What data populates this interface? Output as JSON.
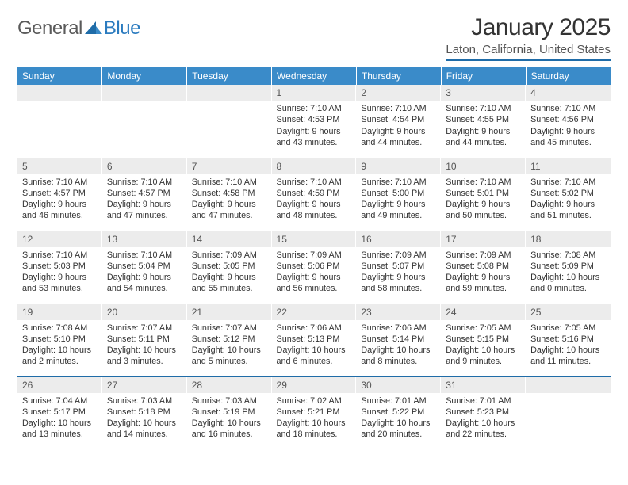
{
  "brand": {
    "text1": "General",
    "text2": "Blue"
  },
  "title": "January 2025",
  "location": "Laton, California, United States",
  "colors": {
    "header_bg": "#3a8bc9",
    "rule": "#1f6ca8",
    "daynum_bg": "#ececec",
    "brand_gray": "#5a5a5a",
    "brand_blue": "#2b7bbf"
  },
  "day_headers": [
    "Sunday",
    "Monday",
    "Tuesday",
    "Wednesday",
    "Thursday",
    "Friday",
    "Saturday"
  ],
  "weeks": [
    [
      {
        "n": "",
        "sr": "",
        "ss": "",
        "dl": ""
      },
      {
        "n": "",
        "sr": "",
        "ss": "",
        "dl": ""
      },
      {
        "n": "",
        "sr": "",
        "ss": "",
        "dl": ""
      },
      {
        "n": "1",
        "sr": "7:10 AM",
        "ss": "4:53 PM",
        "dl": "9 hours and 43 minutes."
      },
      {
        "n": "2",
        "sr": "7:10 AM",
        "ss": "4:54 PM",
        "dl": "9 hours and 44 minutes."
      },
      {
        "n": "3",
        "sr": "7:10 AM",
        "ss": "4:55 PM",
        "dl": "9 hours and 44 minutes."
      },
      {
        "n": "4",
        "sr": "7:10 AM",
        "ss": "4:56 PM",
        "dl": "9 hours and 45 minutes."
      }
    ],
    [
      {
        "n": "5",
        "sr": "7:10 AM",
        "ss": "4:57 PM",
        "dl": "9 hours and 46 minutes."
      },
      {
        "n": "6",
        "sr": "7:10 AM",
        "ss": "4:57 PM",
        "dl": "9 hours and 47 minutes."
      },
      {
        "n": "7",
        "sr": "7:10 AM",
        "ss": "4:58 PM",
        "dl": "9 hours and 47 minutes."
      },
      {
        "n": "8",
        "sr": "7:10 AM",
        "ss": "4:59 PM",
        "dl": "9 hours and 48 minutes."
      },
      {
        "n": "9",
        "sr": "7:10 AM",
        "ss": "5:00 PM",
        "dl": "9 hours and 49 minutes."
      },
      {
        "n": "10",
        "sr": "7:10 AM",
        "ss": "5:01 PM",
        "dl": "9 hours and 50 minutes."
      },
      {
        "n": "11",
        "sr": "7:10 AM",
        "ss": "5:02 PM",
        "dl": "9 hours and 51 minutes."
      }
    ],
    [
      {
        "n": "12",
        "sr": "7:10 AM",
        "ss": "5:03 PM",
        "dl": "9 hours and 53 minutes."
      },
      {
        "n": "13",
        "sr": "7:10 AM",
        "ss": "5:04 PM",
        "dl": "9 hours and 54 minutes."
      },
      {
        "n": "14",
        "sr": "7:09 AM",
        "ss": "5:05 PM",
        "dl": "9 hours and 55 minutes."
      },
      {
        "n": "15",
        "sr": "7:09 AM",
        "ss": "5:06 PM",
        "dl": "9 hours and 56 minutes."
      },
      {
        "n": "16",
        "sr": "7:09 AM",
        "ss": "5:07 PM",
        "dl": "9 hours and 58 minutes."
      },
      {
        "n": "17",
        "sr": "7:09 AM",
        "ss": "5:08 PM",
        "dl": "9 hours and 59 minutes."
      },
      {
        "n": "18",
        "sr": "7:08 AM",
        "ss": "5:09 PM",
        "dl": "10 hours and 0 minutes."
      }
    ],
    [
      {
        "n": "19",
        "sr": "7:08 AM",
        "ss": "5:10 PM",
        "dl": "10 hours and 2 minutes."
      },
      {
        "n": "20",
        "sr": "7:07 AM",
        "ss": "5:11 PM",
        "dl": "10 hours and 3 minutes."
      },
      {
        "n": "21",
        "sr": "7:07 AM",
        "ss": "5:12 PM",
        "dl": "10 hours and 5 minutes."
      },
      {
        "n": "22",
        "sr": "7:06 AM",
        "ss": "5:13 PM",
        "dl": "10 hours and 6 minutes."
      },
      {
        "n": "23",
        "sr": "7:06 AM",
        "ss": "5:14 PM",
        "dl": "10 hours and 8 minutes."
      },
      {
        "n": "24",
        "sr": "7:05 AM",
        "ss": "5:15 PM",
        "dl": "10 hours and 9 minutes."
      },
      {
        "n": "25",
        "sr": "7:05 AM",
        "ss": "5:16 PM",
        "dl": "10 hours and 11 minutes."
      }
    ],
    [
      {
        "n": "26",
        "sr": "7:04 AM",
        "ss": "5:17 PM",
        "dl": "10 hours and 13 minutes."
      },
      {
        "n": "27",
        "sr": "7:03 AM",
        "ss": "5:18 PM",
        "dl": "10 hours and 14 minutes."
      },
      {
        "n": "28",
        "sr": "7:03 AM",
        "ss": "5:19 PM",
        "dl": "10 hours and 16 minutes."
      },
      {
        "n": "29",
        "sr": "7:02 AM",
        "ss": "5:21 PM",
        "dl": "10 hours and 18 minutes."
      },
      {
        "n": "30",
        "sr": "7:01 AM",
        "ss": "5:22 PM",
        "dl": "10 hours and 20 minutes."
      },
      {
        "n": "31",
        "sr": "7:01 AM",
        "ss": "5:23 PM",
        "dl": "10 hours and 22 minutes."
      },
      {
        "n": "",
        "sr": "",
        "ss": "",
        "dl": ""
      }
    ]
  ],
  "labels": {
    "sunrise": "Sunrise:",
    "sunset": "Sunset:",
    "daylight": "Daylight:"
  }
}
